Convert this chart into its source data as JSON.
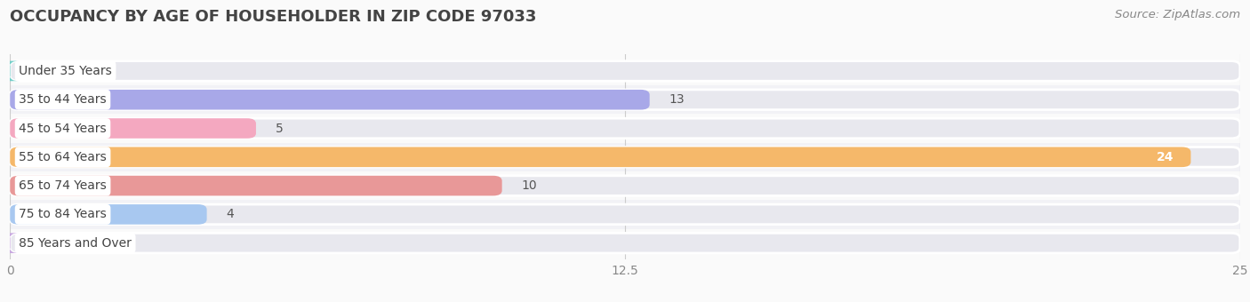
{
  "title": "OCCUPANCY BY AGE OF HOUSEHOLDER IN ZIP CODE 97033",
  "source": "Source: ZipAtlas.com",
  "categories": [
    "Under 35 Years",
    "35 to 44 Years",
    "45 to 54 Years",
    "55 to 64 Years",
    "65 to 74 Years",
    "75 to 84 Years",
    "85 Years and Over"
  ],
  "values": [
    0,
    13,
    5,
    24,
    10,
    4,
    0
  ],
  "bar_colors": [
    "#72CEC9",
    "#A8A8E8",
    "#F4A8C0",
    "#F5B86A",
    "#E89898",
    "#A8C8F0",
    "#C8A8E0"
  ],
  "bar_bg_color": "#E8E8EE",
  "figure_bg": "#FAFAFA",
  "row_bg_alt": "#F2F2F6",
  "row_bg_main": "#FAFAFA",
  "xlim": [
    0,
    25
  ],
  "xticks": [
    0,
    12.5,
    25
  ],
  "bar_height": 0.7,
  "value_color_inside": "#FFFFFF",
  "value_color_outside": "#555555",
  "title_fontsize": 13,
  "source_fontsize": 9.5,
  "label_fontsize": 10,
  "value_fontsize": 10,
  "title_color": "#444444",
  "label_color": "#444444",
  "tick_color": "#888888",
  "grid_color": "#CCCCCC"
}
